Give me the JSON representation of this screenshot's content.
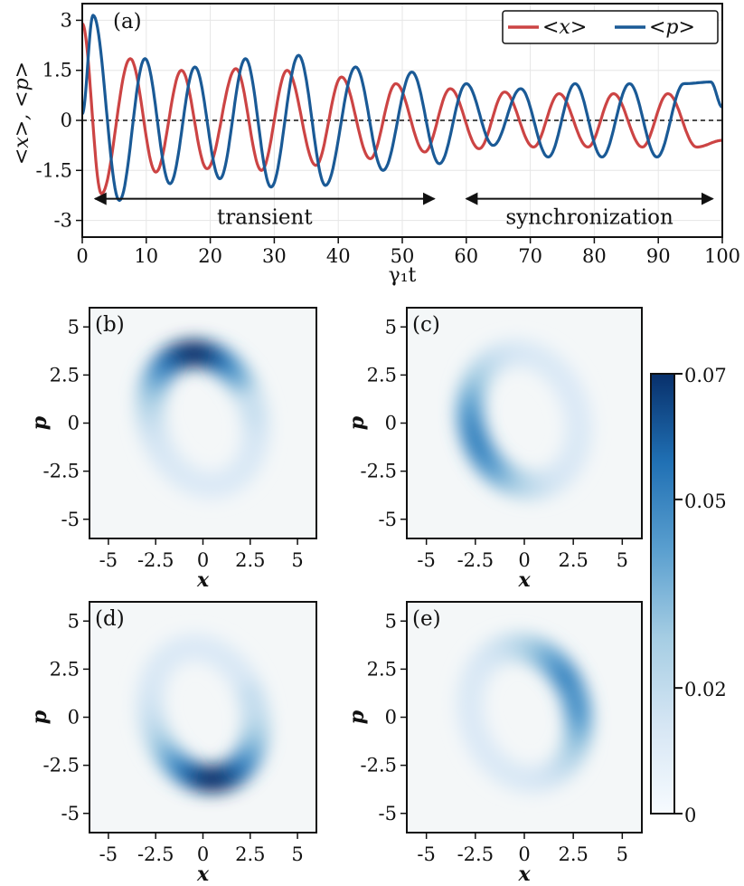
{
  "chart_data": [
    {
      "type": "line",
      "panel_label": "(a)",
      "xlabel": "γ₁t",
      "ylabel": "<x>, <p>",
      "xlim": [
        0,
        100
      ],
      "ylim": [
        -3.5,
        3.5
      ],
      "xticks": [
        0,
        10,
        20,
        30,
        40,
        50,
        60,
        70,
        80,
        90,
        100
      ],
      "yticks": [
        3,
        1.5,
        0,
        -1.5,
        -3
      ],
      "ytick_labels": [
        "3",
        "1.5",
        "0",
        "-1.5",
        "-3"
      ],
      "grid": true,
      "legend_position": "top-right",
      "zero_reference_line": "dashed",
      "series": [
        {
          "name": "<x>",
          "color": "#cc4444",
          "description": "damped oscillation, period ~8.3, decaying from amplitude ~3 to ~0.8",
          "x": [
            0,
            3,
            7.5,
            11.5,
            15.5,
            19.5,
            24,
            28,
            32,
            36.5,
            40.5,
            45,
            49,
            53.5,
            57.5,
            62,
            66,
            70.5,
            74.5,
            79,
            83,
            87.5,
            91.5,
            96,
            100
          ],
          "y": [
            2.9,
            -2.2,
            1.85,
            -1.55,
            1.5,
            -1.45,
            1.55,
            -1.5,
            1.5,
            -1.35,
            1.3,
            -1.15,
            1.1,
            -0.95,
            0.95,
            -0.85,
            0.85,
            -0.8,
            0.8,
            -0.8,
            0.8,
            -0.8,
            0.8,
            -0.8,
            -0.6
          ]
        },
        {
          "name": "<p>",
          "color": "#1a5a96",
          "description": "damped oscillation lagging <x>, decaying from amplitude ~3.2 to ~1.1",
          "x": [
            0,
            1.7,
            5.8,
            9.8,
            13.7,
            17.6,
            21.5,
            25.5,
            29.5,
            33.8,
            38,
            42.7,
            47,
            51.5,
            55.8,
            60,
            64.2,
            68.5,
            72.8,
            77,
            81.2,
            85.5,
            89.8,
            94,
            98.2,
            100
          ],
          "y": [
            0.2,
            3.15,
            -2.4,
            1.85,
            -1.9,
            1.6,
            -1.75,
            1.85,
            -2.0,
            1.95,
            -1.95,
            1.6,
            -1.5,
            1.45,
            -1.3,
            1.1,
            -0.75,
            0.95,
            -1.1,
            1.1,
            -1.1,
            1.1,
            -1.1,
            1.1,
            1.15,
            0.4
          ]
        }
      ],
      "annotations": [
        {
          "text": "transient",
          "arrow_from_x": 2,
          "arrow_to_x": 55,
          "y": -2.35
        },
        {
          "text": "synchronization",
          "arrow_from_x": 60,
          "arrow_to_x": 98.5,
          "y": -2.35
        }
      ]
    },
    {
      "type": "heatmap",
      "panel_label": "(b)",
      "xlabel": "x",
      "ylabel": "p",
      "xlim": [
        -6,
        6
      ],
      "ylim": [
        -6,
        6
      ],
      "xticks": [
        -5,
        -2.5,
        0,
        2.5,
        5
      ],
      "yticks": [
        5,
        2.5,
        0,
        -2.5,
        -5
      ],
      "distribution": "tilted elliptical ring, brightest at top",
      "ring_center": [
        0,
        0.2
      ],
      "ring_radii": [
        2.7,
        3.5
      ],
      "peak_angle_deg": 90,
      "max_density": 0.07
    },
    {
      "type": "heatmap",
      "panel_label": "(c)",
      "xlabel": "x",
      "ylabel": "p",
      "xlim": [
        -6,
        6
      ],
      "ylim": [
        -6,
        6
      ],
      "xticks": [
        -5,
        -2.5,
        0,
        2.5,
        5
      ],
      "yticks": [
        5,
        2.5,
        0,
        -2.5,
        -5
      ],
      "distribution": "tilted elliptical ring, brightest at left",
      "ring_center": [
        0,
        0.2
      ],
      "ring_radii": [
        2.7,
        3.5
      ],
      "peak_angle_deg": 195,
      "max_density": 0.05
    },
    {
      "type": "heatmap",
      "panel_label": "(d)",
      "xlabel": "x",
      "ylabel": "p",
      "xlim": [
        -6,
        6
      ],
      "ylim": [
        -6,
        6
      ],
      "xticks": [
        -5,
        -2.5,
        0,
        2.5,
        5
      ],
      "yticks": [
        5,
        2.5,
        0,
        -2.5,
        -5
      ],
      "distribution": "tilted elliptical ring, brightest at bottom",
      "ring_center": [
        0,
        0.2
      ],
      "ring_radii": [
        2.7,
        3.5
      ],
      "peak_angle_deg": 270,
      "max_density": 0.07
    },
    {
      "type": "heatmap",
      "panel_label": "(e)",
      "xlabel": "x",
      "ylabel": "p",
      "xlim": [
        -6,
        6
      ],
      "ylim": [
        -6,
        6
      ],
      "xticks": [
        -5,
        -2.5,
        0,
        2.5,
        5
      ],
      "yticks": [
        5,
        2.5,
        0,
        -2.5,
        -5
      ],
      "distribution": "tilted elliptical ring, brightest at right/top-right",
      "ring_center": [
        0,
        0.2
      ],
      "ring_radii": [
        2.7,
        3.5
      ],
      "peak_angle_deg": 20,
      "max_density": 0.05
    }
  ],
  "colorbar": {
    "range": [
      0,
      0.07
    ],
    "tick_values": [
      0.07,
      0.05,
      0.02,
      0
    ],
    "tick_labels": [
      "0.07",
      "0.05",
      "0.02",
      "0"
    ],
    "color_low": "#f6fafd",
    "color_high": "#08306b",
    "colormap": "Blues"
  },
  "colors": {
    "x_series": "#cc4444",
    "p_series": "#1a5a96",
    "axes": "#111111",
    "grid": "#e6e6e6",
    "background": "#ffffff"
  }
}
